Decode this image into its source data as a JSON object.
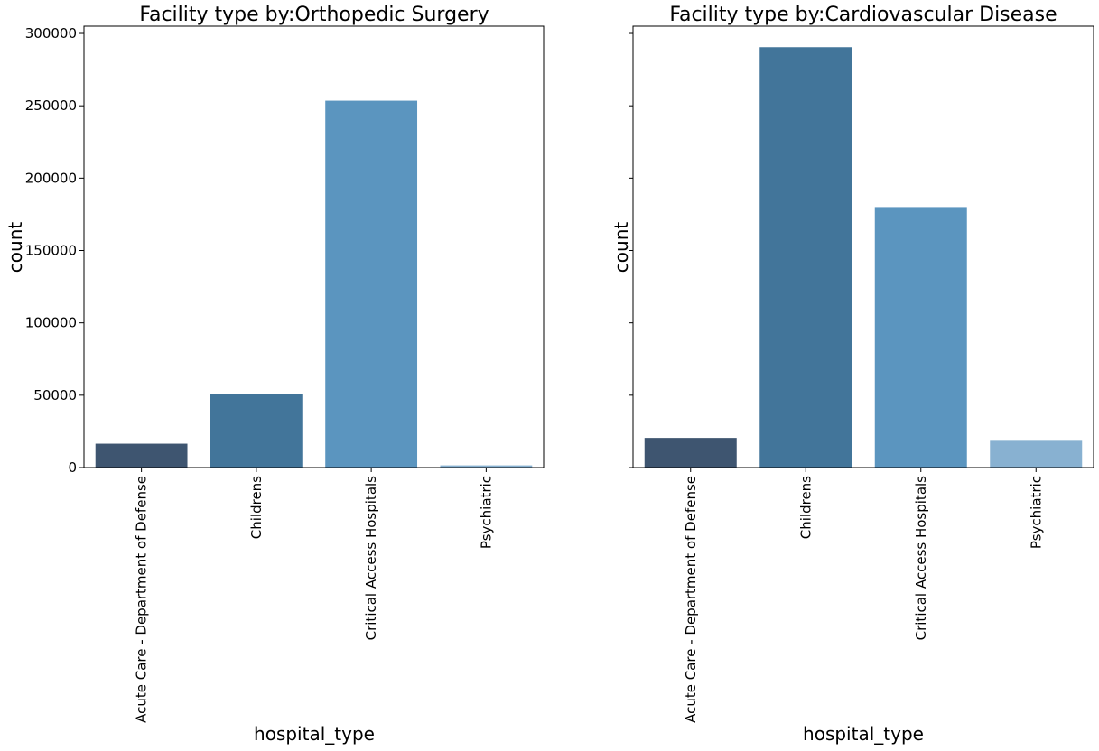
{
  "chart_data": [
    {
      "type": "bar",
      "title": "Facility type by:Orthopedic Surgery",
      "xlabel": "hospital_type",
      "ylabel": "count",
      "categories": [
        "Acute Care - Department of Defense",
        "Childrens",
        "Critical Access Hospitals",
        "Psychiatric"
      ],
      "values": [
        16500,
        51000,
        253500,
        1500
      ],
      "colors": [
        "#3e5570",
        "#42759a",
        "#5b95bf",
        "#88b1d1"
      ],
      "ylim": [
        0,
        305000
      ],
      "yticks": [
        0,
        50000,
        100000,
        150000,
        200000,
        250000,
        300000
      ],
      "show_ytick_labels": true
    },
    {
      "type": "bar",
      "title": "Facility type by:Cardiovascular Disease",
      "xlabel": "hospital_type",
      "ylabel": "count",
      "categories": [
        "Acute Care - Department of Defense",
        "Childrens",
        "Critical Access Hospitals",
        "Psychiatric"
      ],
      "values": [
        20500,
        290500,
        180000,
        18500
      ],
      "colors": [
        "#3e5570",
        "#42759a",
        "#5b95bf",
        "#88b1d1"
      ],
      "ylim": [
        0,
        305000
      ],
      "yticks": [
        0,
        50000,
        100000,
        150000,
        200000,
        250000,
        300000
      ],
      "show_ytick_labels": false
    }
  ]
}
